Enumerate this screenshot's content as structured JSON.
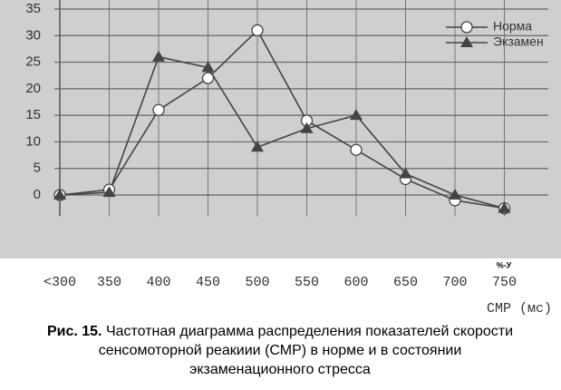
{
  "chart_data": {
    "type": "line",
    "categories": [
      "<300",
      "350",
      "400",
      "450",
      "500",
      "550",
      "600",
      "650",
      "700",
      "750"
    ],
    "series": [
      {
        "name": "Норма",
        "color": "#444444",
        "marker": "circle",
        "values": [
          0,
          1,
          16,
          22,
          31,
          14,
          8.5,
          3,
          -1,
          -2.5
        ]
      },
      {
        "name": "Экзамен",
        "color": "#444444",
        "marker": "triangle",
        "values": [
          0,
          0.5,
          26,
          24,
          9,
          12.5,
          15,
          4,
          0,
          -2.5
        ]
      }
    ],
    "ylim": [
      -4,
      35
    ],
    "yticks": [
      0,
      5,
      10,
      15,
      20,
      25,
      30,
      35
    ],
    "grid": true,
    "legend": "top-right",
    "x_label": "СМР (мс)",
    "annotation": "%-У",
    "figure_label": "Рис. 15.",
    "caption": [
      "Частотная диаграмма распределения показателей скорости",
      "сенсомоторной реакиии (СМР) в норме и в состоянии",
      "экзаменационного стресса"
    ]
  }
}
